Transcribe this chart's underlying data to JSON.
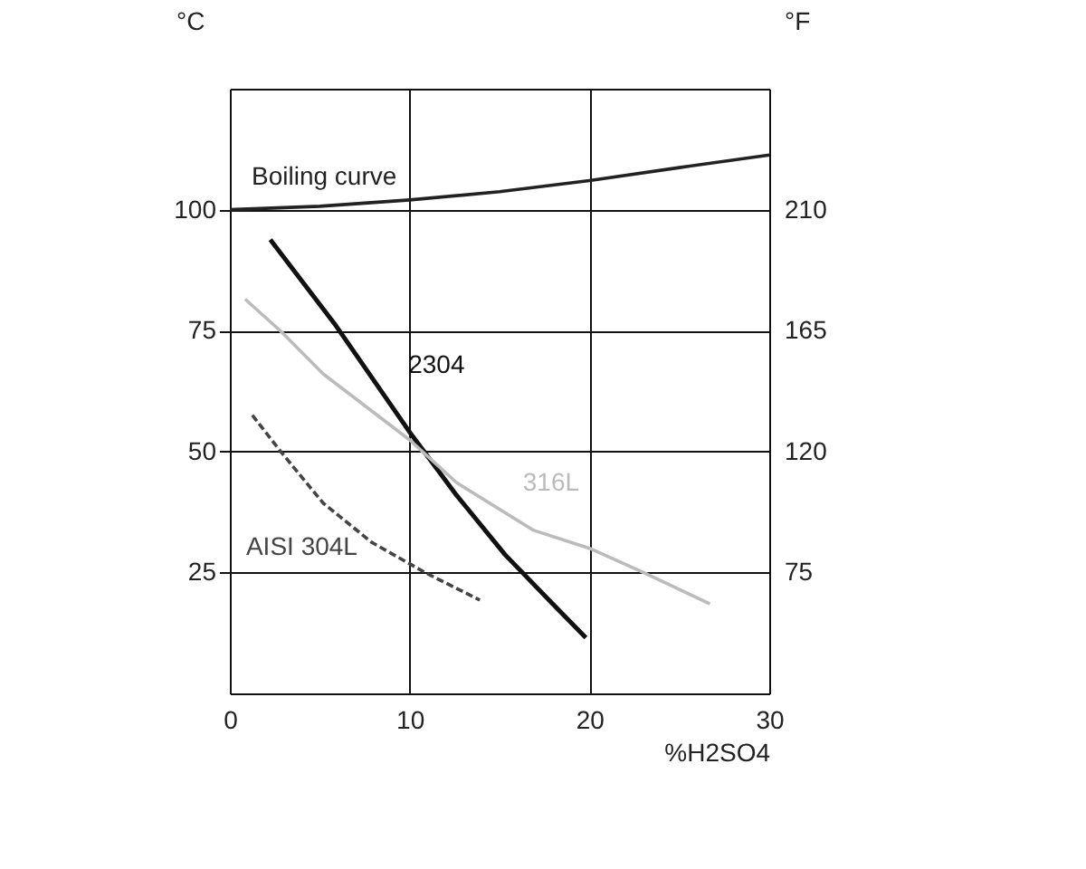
{
  "chart_data": {
    "type": "line",
    "xlabel": "%H2SO4",
    "ylabel": "°C",
    "y2label": "°F",
    "xlim": [
      0,
      30
    ],
    "xticks": [
      0,
      10,
      20,
      30
    ],
    "ylim": [
      0,
      125
    ],
    "yticks": [
      25,
      50,
      75,
      100
    ],
    "y2lim": [
      30,
      255
    ],
    "y2ticks": [
      75,
      120,
      165,
      210
    ],
    "grid": true,
    "line_style": "solid",
    "marker": "none",
    "series": [
      {
        "name": "Boiling curve",
        "color": "#222222",
        "x": [
          0,
          5,
          10,
          15,
          20,
          25,
          30
        ],
        "values": [
          100,
          100.7,
          102,
          103.7,
          106,
          108.7,
          111.3
        ]
      },
      {
        "name": "2304",
        "color": "#111111",
        "x": [
          2.25,
          5.9,
          10,
          12.6,
          15.3,
          17.9,
          19.8
        ],
        "values": [
          93.8,
          76,
          54,
          41,
          28.7,
          18.7,
          11.5
        ]
      },
      {
        "name": "316L",
        "color": "#bbbbbb",
        "x": [
          0.85,
          2.85,
          5.2,
          10,
          12.6,
          16.9,
          20,
          23,
          26.7
        ],
        "values": [
          81.5,
          74.8,
          66,
          52.4,
          43.6,
          33.7,
          30,
          25,
          18.5
        ]
      },
      {
        "name": "AISI 304L",
        "color": "#444444",
        "line_style": "dashed",
        "x": [
          1.25,
          2.85,
          5.2,
          7.9,
          10.9,
          13.9
        ],
        "values": [
          57.5,
          49.9,
          39.3,
          31.2,
          24.9,
          19.3
        ]
      }
    ]
  }
}
